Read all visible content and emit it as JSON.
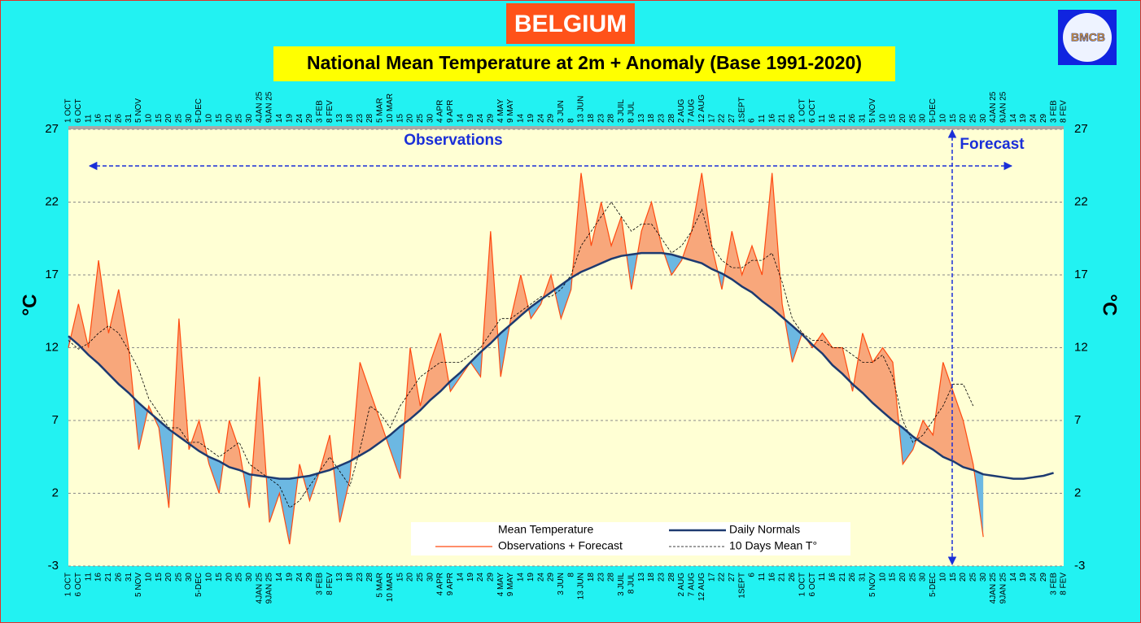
{
  "chart_data": {
    "type": "line",
    "title": "BELGIUM",
    "subtitle": "National Mean Temperature at 2m + Anomaly (Base 1991-2020)",
    "logo": "BMCB",
    "ylabel": "°C",
    "annotations": {
      "observations": "Observations",
      "forecast": "Forecast"
    },
    "categories": [
      "1 OCT",
      "6 OCT",
      "11",
      "16",
      "21",
      "26",
      "31",
      "5 NOV",
      "10",
      "15",
      "20",
      "25",
      "30",
      "5-DEC",
      "10",
      "15",
      "20",
      "25",
      "30",
      "4JAN 25",
      "9JAN 25",
      "14",
      "19",
      "24",
      "29",
      "3 FEB",
      "8 FEV",
      "13",
      "18",
      "23",
      "28",
      "5 MAR",
      "10 MAR",
      "15",
      "20",
      "25",
      "30",
      "4 APR",
      "9 APR",
      "14",
      "19",
      "24",
      "29",
      "4 MAY",
      "9 MAY",
      "14",
      "19",
      "24",
      "29",
      "3 JUN",
      "8",
      "13 JUN",
      "18",
      "23",
      "28",
      "3 JUIL",
      "8 JUL",
      "13",
      "18",
      "23",
      "28",
      "2 AUG",
      "7 AUG",
      "12 AUG",
      "17",
      "22",
      "27",
      "1SEPT",
      "6",
      "11",
      "16",
      "21",
      "26",
      "1 OCT",
      "6 OCT",
      "11",
      "16",
      "21",
      "26",
      "31",
      "5 NOV",
      "10",
      "15",
      "20",
      "25",
      "30",
      "5-DEC",
      "10",
      "15",
      "20",
      "25",
      "30",
      "4JAN 25",
      "9JAN 25",
      "14",
      "19",
      "24",
      "29",
      "3 FEB",
      "8 FEV"
    ],
    "area": {
      "name": "Mean Temperature",
      "color": "#ffffff",
      "above_color": "#f8a77b",
      "below_color": "#6cb8e2"
    },
    "series": [
      {
        "name": "Daily Normals",
        "color": "#1d3a70",
        "values": [
          12.8,
          12.2,
          11.5,
          10.9,
          10.2,
          9.5,
          8.9,
          8.2,
          7.6,
          7,
          6.4,
          5.9,
          5.4,
          4.9,
          4.5,
          4.2,
          3.8,
          3.6,
          3.3,
          3.2,
          3.1,
          3,
          3,
          3.1,
          3.2,
          3.4,
          3.6,
          3.9,
          4.2,
          4.6,
          5,
          5.5,
          6,
          6.6,
          7.1,
          7.7,
          8.4,
          9,
          9.7,
          10.3,
          11,
          11.7,
          12.3,
          13,
          13.6,
          14.2,
          14.8,
          15.3,
          15.8,
          16.3,
          16.8,
          17.2,
          17.5,
          17.8,
          18.1,
          18.3,
          18.4,
          18.5,
          18.5,
          18.5,
          18.4,
          18.2,
          18,
          17.8,
          17.4,
          17.1,
          16.7,
          16.2,
          15.8,
          15.2,
          14.7,
          14.1,
          13.5,
          12.9,
          12.2,
          11.6,
          10.8,
          10.2,
          9.5,
          8.9,
          8.2,
          7.6,
          7,
          6.5,
          5.9,
          5.4,
          5,
          4.5,
          4.2,
          3.8,
          3.6,
          3.3,
          3.2,
          3.1,
          3,
          3,
          3.1,
          3.2,
          3.4,
          null
        ]
      },
      {
        "name": "Observations + Forecast",
        "color": "#ff4a10",
        "values": [
          12,
          15,
          12,
          18,
          13,
          16,
          12,
          5,
          8,
          6.5,
          1,
          14,
          5,
          7,
          4,
          2,
          7,
          5,
          1,
          10,
          0,
          2,
          -1.5,
          4,
          1.5,
          3.5,
          6,
          0,
          3,
          11,
          9,
          7,
          5,
          3,
          12,
          8,
          11,
          13,
          9,
          10,
          11,
          10,
          20,
          10,
          14,
          17,
          14,
          15,
          17,
          14,
          16,
          24,
          19,
          22,
          19,
          21,
          16,
          20,
          22,
          19,
          17,
          18,
          20,
          24,
          19,
          16,
          20,
          17,
          19,
          17,
          24,
          15,
          11,
          13,
          12,
          13,
          12,
          12,
          9,
          13,
          11,
          12,
          11,
          4,
          5,
          7,
          6,
          11,
          9,
          7,
          4,
          -1,
          null,
          null,
          null,
          null,
          null,
          null,
          null,
          null
        ]
      },
      {
        "name": "10 Days Mean T°",
        "color": "#000000",
        "values": [
          12.5,
          11.9,
          12.3,
          13,
          13.5,
          13,
          11.8,
          10.5,
          8.5,
          7.5,
          6.5,
          6.5,
          5.5,
          5.5,
          5,
          4.5,
          5,
          5.5,
          4,
          3.5,
          3,
          2.5,
          1,
          1.5,
          2.5,
          3.5,
          4.5,
          3.5,
          2.5,
          5,
          8,
          7.5,
          6.5,
          8,
          9,
          10,
          10.5,
          11,
          11,
          11,
          11.5,
          12,
          13,
          14,
          14,
          14.5,
          15,
          15.5,
          15.5,
          16,
          17,
          19,
          20,
          21,
          22,
          21,
          20,
          20.5,
          20.5,
          19.5,
          18.5,
          19,
          20,
          21.5,
          19,
          18,
          17.5,
          17.5,
          18,
          18,
          18.5,
          16.5,
          14,
          13,
          12.5,
          12.5,
          12,
          12,
          11.5,
          11,
          11,
          11.5,
          10,
          7,
          5.5,
          6,
          7,
          8,
          9.5,
          9.5,
          8,
          null,
          null,
          null,
          null,
          null,
          null,
          null,
          null,
          null
        ]
      }
    ],
    "ylim": [
      -3,
      27
    ],
    "yticks": [
      -3,
      2,
      7,
      12,
      17,
      22,
      27
    ],
    "grid": true
  }
}
